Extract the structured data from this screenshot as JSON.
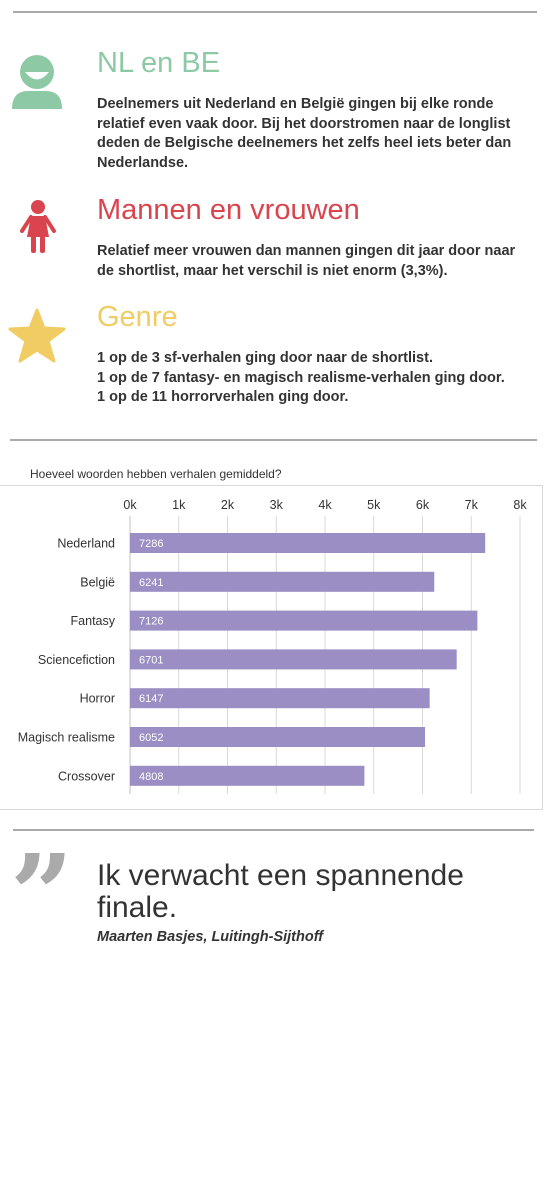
{
  "sections": [
    {
      "title": "NL en BE",
      "color": "#8dc9a4",
      "icon": "person-icon",
      "lines": [
        "Deelnemers uit Nederland en België gingen bij elke ronde",
        "relatief even vaak door. Bij het doorstromen naar de longlist",
        "deden de Belgische deelnemers het zelfs heel iets beter dan",
        "Nederlandse."
      ]
    },
    {
      "title": "Mannen en vrouwen",
      "color": "#d9454e",
      "icon": "woman-icon",
      "lines": [
        "Relatief meer vrouwen dan mannen gingen dit jaar door naar",
        "de shortlist, maar het verschil is niet enorm (3,3%)."
      ]
    },
    {
      "title": "Genre",
      "color": "#f0cc62",
      "icon": "star-icon",
      "lines": [
        "1 op de 3 sf-verhalen ging door naar de shortlist.",
        "1 op de 7 fantasy- en magisch realisme-verhalen ging door.",
        "1 op de 11 horrorverhalen ging door."
      ]
    }
  ],
  "chart_data": {
    "type": "bar",
    "orientation": "horizontal",
    "title": "Hoeveel woorden hebben verhalen gemiddeld?",
    "categories": [
      "Nederland",
      "België",
      "Fantasy",
      "Sciencefiction",
      "Horror",
      "Magisch realisme",
      "Crossover"
    ],
    "values": [
      7286,
      6241,
      7126,
      6701,
      6147,
      6052,
      4808
    ],
    "x_ticks": [
      "0k",
      "1k",
      "2k",
      "3k",
      "4k",
      "5k",
      "6k",
      "7k",
      "8k"
    ],
    "xlim": [
      0,
      8000
    ],
    "xlabel": "",
    "ylabel": "",
    "grid": true,
    "axis_position": "top",
    "bar_color": "#9b8ec4",
    "data_labels": true
  },
  "quote": {
    "mark": "”",
    "text": "Ik verwacht een spannende finale.",
    "author": "Maarten Basjes, Luitingh-Sijthoff"
  }
}
